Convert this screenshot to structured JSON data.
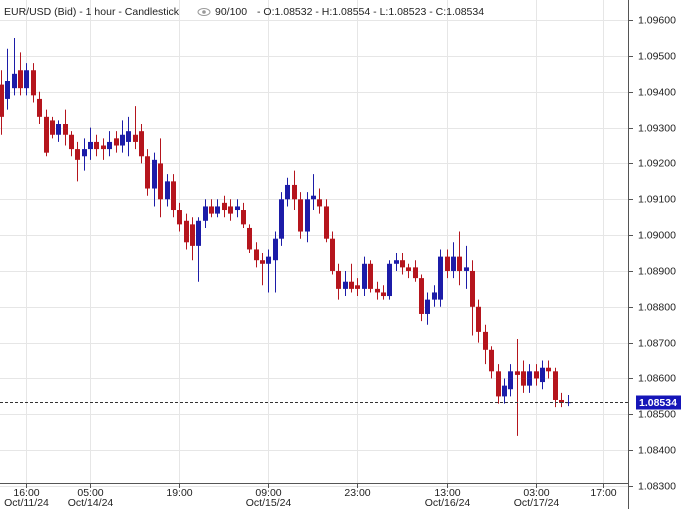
{
  "chart_data": {
    "type": "candlestick",
    "title": "EUR/USD (Bid) - 1 hour - Candlestick",
    "zoom": "90/100",
    "ohlc_text": "- O:1.08532 - H:1.08554 - L:1.08523 - C:1.08534",
    "up_color": "#1c1ca8",
    "down_color": "#b5151d",
    "open": [
      1.0942,
      1.0938,
      1.0941,
      1.0946,
      1.0941,
      1.0946,
      1.0938,
      1.0933,
      1.0932,
      1.0928,
      1.0931,
      1.0928,
      1.0924,
      1.0922,
      1.0924,
      1.0926,
      1.0925,
      1.0924,
      1.0927,
      1.0925,
      1.0926,
      1.0928,
      1.0929,
      1.0922,
      1.0913,
      1.092,
      1.091,
      1.0915,
      1.0907,
      1.0904,
      1.0903,
      1.0897,
      1.0904,
      1.0908,
      1.0906,
      1.0909,
      1.0908,
      1.0907,
      1.0907,
      1.0902,
      1.0896,
      1.0893,
      1.0892,
      1.0893,
      1.0899,
      1.091,
      1.0914,
      1.091,
      1.0901,
      1.091,
      1.091,
      1.0908,
      1.0899,
      1.089,
      1.0885,
      1.0887,
      1.0886,
      1.0885,
      1.0892,
      1.0885,
      1.0884,
      1.0883,
      1.0892,
      1.0893,
      1.0891,
      1.0891,
      1.0888,
      1.0878,
      1.0882,
      1.0882,
      1.0894,
      1.089,
      1.0894,
      1.089,
      1.089,
      1.088,
      1.0873,
      1.0868,
      1.0862,
      1.0855,
      1.0857,
      1.0862,
      1.0862,
      1.0858,
      1.0862,
      1.0859,
      1.0863,
      1.0862,
      1.0854,
      1.08532
    ],
    "high": [
      1.0946,
      1.0952,
      1.0955,
      1.0951,
      1.0948,
      1.0948,
      1.094,
      1.0935,
      1.0933,
      1.0932,
      1.0935,
      1.0929,
      1.0926,
      1.0927,
      1.093,
      1.0928,
      1.0927,
      1.0929,
      1.0929,
      1.0932,
      1.0933,
      1.0936,
      1.0931,
      1.0924,
      1.0923,
      1.0927,
      1.0917,
      1.0917,
      1.0909,
      1.0906,
      1.0905,
      1.0905,
      1.091,
      1.091,
      1.091,
      1.0911,
      1.091,
      1.091,
      1.0909,
      1.0903,
      1.0898,
      1.0895,
      1.0896,
      1.0901,
      1.0912,
      1.0916,
      1.0918,
      1.0912,
      1.0912,
      1.0917,
      1.0913,
      1.091,
      1.0901,
      1.0892,
      1.089,
      1.0892,
      1.0888,
      1.0894,
      1.0893,
      1.0887,
      1.0886,
      1.0893,
      1.0895,
      1.0895,
      1.0892,
      1.0893,
      1.0889,
      1.0884,
      1.0886,
      1.0896,
      1.0896,
      1.0898,
      1.0901,
      1.0897,
      1.0893,
      1.0882,
      1.0875,
      1.0869,
      1.0864,
      1.086,
      1.0864,
      1.0871,
      1.0865,
      1.0864,
      1.0864,
      1.0865,
      1.0865,
      1.0863,
      1.0856,
      1.08554
    ],
    "low": [
      1.0928,
      1.0935,
      1.0939,
      1.0939,
      1.0939,
      1.0937,
      1.0931,
      1.0922,
      1.0927,
      1.0926,
      1.0925,
      1.0922,
      1.0915,
      1.0918,
      1.0921,
      1.0922,
      1.0921,
      1.0922,
      1.0923,
      1.0923,
      1.0922,
      1.0924,
      1.092,
      1.0911,
      1.0908,
      1.0905,
      1.0908,
      1.0905,
      1.0901,
      1.0896,
      1.0893,
      1.0887,
      1.0902,
      1.0905,
      1.0905,
      1.0905,
      1.0904,
      1.0905,
      1.0902,
      1.0895,
      1.0891,
      1.0886,
      1.0884,
      1.0884,
      1.0897,
      1.0908,
      1.0907,
      1.0899,
      1.0898,
      1.0907,
      1.0906,
      1.0898,
      1.0889,
      1.0882,
      1.0883,
      1.0884,
      1.0883,
      1.0883,
      1.0884,
      1.0882,
      1.0882,
      1.0882,
      1.089,
      1.0889,
      1.0888,
      1.0887,
      1.0876,
      1.0875,
      1.088,
      1.088,
      1.0888,
      1.0888,
      1.0886,
      1.0885,
      1.0872,
      1.087,
      1.0864,
      1.086,
      1.0853,
      1.0853,
      1.0855,
      1.0844,
      1.0856,
      1.0856,
      1.0858,
      1.0857,
      1.086,
      1.0852,
      1.0852,
      1.08523
    ],
    "close": [
      1.0933,
      1.0943,
      1.0945,
      1.0941,
      1.0946,
      1.0939,
      1.0933,
      1.0923,
      1.0928,
      1.0931,
      1.0928,
      1.0924,
      1.0921,
      1.0924,
      1.0926,
      1.0924,
      1.0924,
      1.0926,
      1.0925,
      1.0928,
      1.0929,
      1.0926,
      1.0922,
      1.0913,
      1.0921,
      1.091,
      1.0915,
      1.0907,
      1.0903,
      1.0898,
      1.0897,
      1.0904,
      1.0908,
      1.0906,
      1.0908,
      1.0907,
      1.0906,
      1.0908,
      1.0903,
      1.0896,
      1.0893,
      1.0892,
      1.0894,
      1.0899,
      1.091,
      1.0914,
      1.091,
      1.0901,
      1.091,
      1.0911,
      1.0908,
      1.0899,
      1.089,
      1.0885,
      1.0887,
      1.0885,
      1.0885,
      1.0892,
      1.0885,
      1.0884,
      1.0883,
      1.0892,
      1.0893,
      1.0891,
      1.089,
      1.0888,
      1.0878,
      1.0882,
      1.0884,
      1.0894,
      1.089,
      1.0894,
      1.089,
      1.0891,
      1.088,
      1.0873,
      1.0868,
      1.0862,
      1.0855,
      1.0858,
      1.0862,
      1.0861,
      1.0858,
      1.0862,
      1.086,
      1.0863,
      1.0862,
      1.0854,
      1.08532,
      1.08534
    ],
    "xlim": [
      -0.16,
      98.5
    ],
    "xticks": [
      {
        "value": 4,
        "label": "16:00",
        "date": "Oct/11/24"
      },
      {
        "value": 14,
        "label": "05:00",
        "date": "Oct/14/24"
      },
      {
        "value": 28,
        "label": "19:00"
      },
      {
        "value": 42,
        "label": "09:00",
        "date": "Oct/15/24"
      },
      {
        "value": 56,
        "label": "23:00"
      },
      {
        "value": 70,
        "label": "13:00",
        "date": "Oct/16/24"
      },
      {
        "value": 84,
        "label": "03:00",
        "date": "Oct/17/24"
      },
      {
        "value": 94.5,
        "label": "17:00"
      }
    ],
    "ylim": [
      1.083,
      1.09656
    ],
    "yticks": [
      {
        "value": 1.096,
        "label": "1.09600"
      },
      {
        "value": 1.095,
        "label": "1.09500"
      },
      {
        "value": 1.094,
        "label": "1.09400"
      },
      {
        "value": 1.093,
        "label": "1.09300"
      },
      {
        "value": 1.092,
        "label": "1.09200"
      },
      {
        "value": 1.091,
        "label": "1.09100"
      },
      {
        "value": 1.09,
        "label": "1.09000"
      },
      {
        "value": 1.089,
        "label": "1.08900"
      },
      {
        "value": 1.088,
        "label": "1.08800"
      },
      {
        "value": 1.087,
        "label": "1.08700"
      },
      {
        "value": 1.086,
        "label": "1.08600"
      },
      {
        "value": 1.085,
        "label": "1.08500"
      },
      {
        "value": 1.084,
        "label": "1.08400"
      },
      {
        "value": 1.083,
        "label": "1.08300"
      }
    ],
    "last_price": {
      "value": 1.08534,
      "label": "1.08534"
    },
    "grid": true
  }
}
